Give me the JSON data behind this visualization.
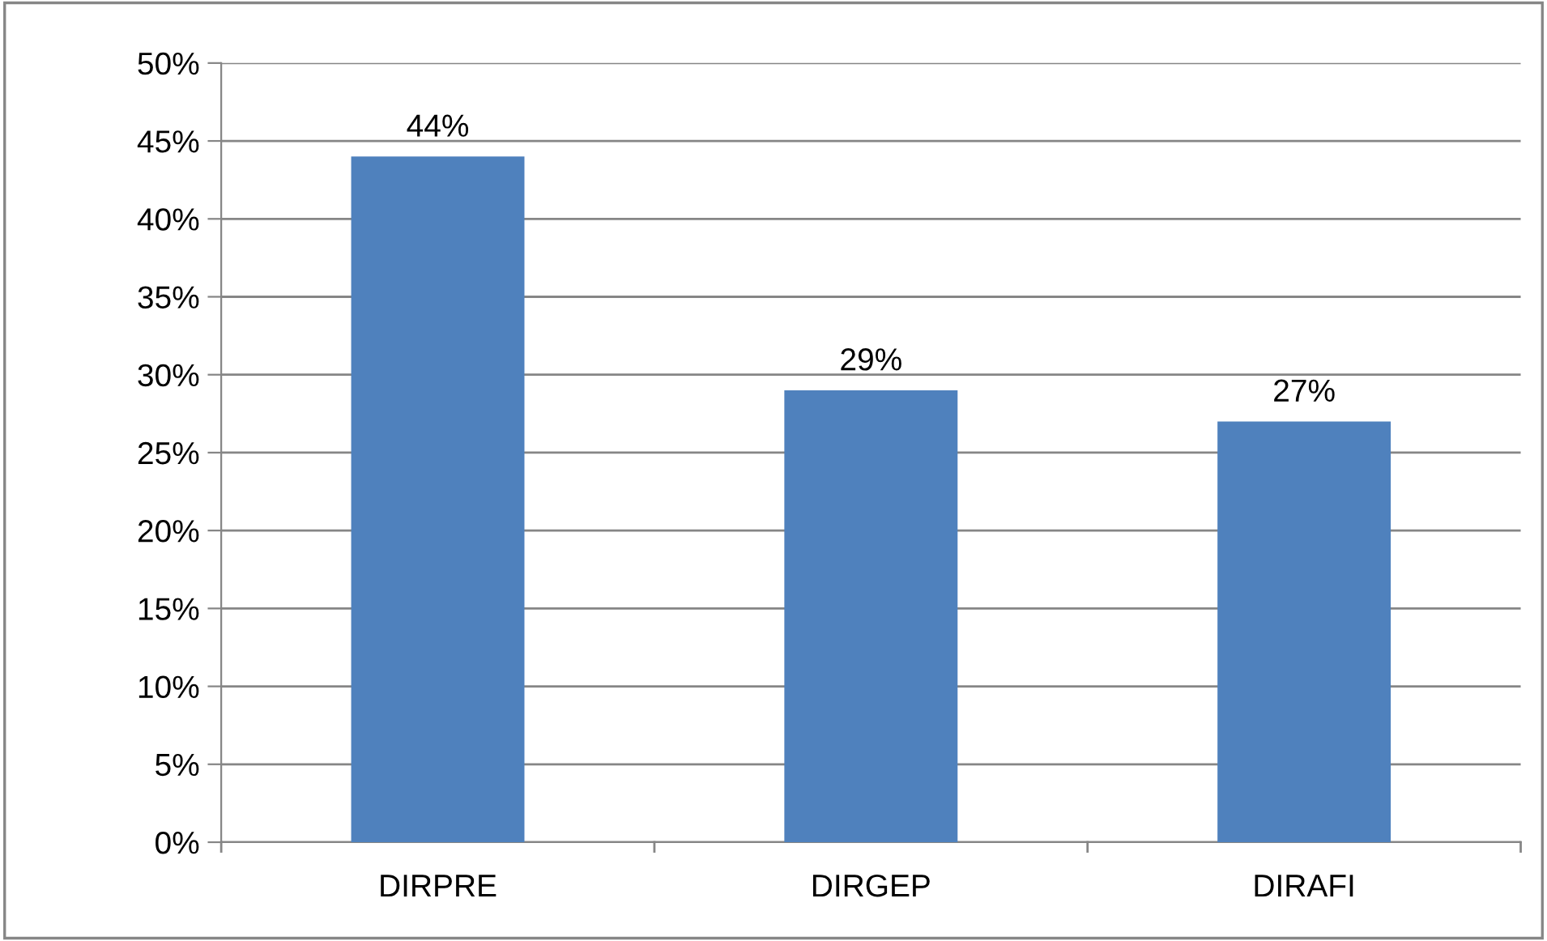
{
  "chart_data": {
    "type": "bar",
    "categories": [
      "DIRPRE",
      "DIRGEP",
      "DIRAFI"
    ],
    "values": [
      44,
      29,
      27
    ],
    "color": "#4f81bd",
    "value_labels": [
      "44%",
      "29%",
      "27%"
    ],
    "ylim": [
      0,
      50
    ],
    "yticks": [
      {
        "value": 0,
        "label": "0%"
      },
      {
        "value": 5,
        "label": "5%"
      },
      {
        "value": 10,
        "label": "10%"
      },
      {
        "value": 15,
        "label": "15%"
      },
      {
        "value": 20,
        "label": "20%"
      },
      {
        "value": 25,
        "label": "25%"
      },
      {
        "value": 30,
        "label": "30%"
      },
      {
        "value": 35,
        "label": "35%"
      },
      {
        "value": 40,
        "label": "40%"
      },
      {
        "value": 45,
        "label": "45%"
      },
      {
        "value": 50,
        "label": "50%"
      }
    ],
    "grid": "y"
  }
}
